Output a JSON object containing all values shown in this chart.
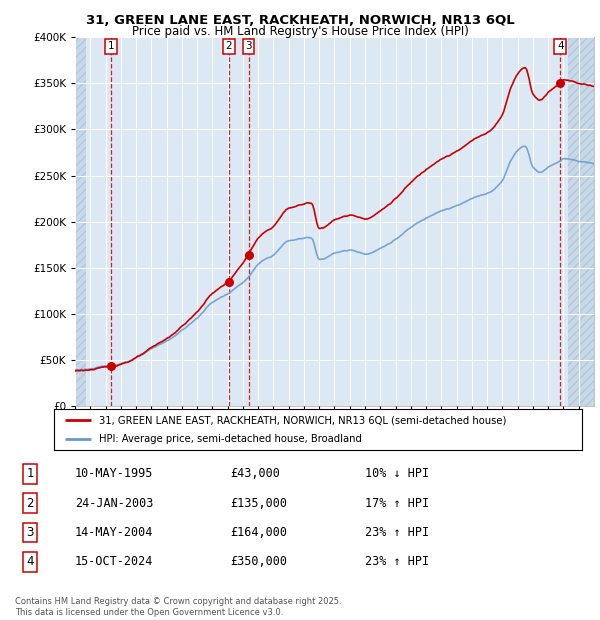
{
  "title": "31, GREEN LANE EAST, RACKHEATH, NORWICH, NR13 6QL",
  "subtitle": "Price paid vs. HM Land Registry's House Price Index (HPI)",
  "sale_prices": [
    43000,
    135000,
    164000,
    350000
  ],
  "sale_labels": [
    "1",
    "2",
    "3",
    "4"
  ],
  "sale_year_floats": [
    1995.37,
    2003.07,
    2004.37,
    2024.79
  ],
  "legend_line1": "31, GREEN LANE EAST, RACKHEATH, NORWICH, NR13 6QL (semi-detached house)",
  "legend_line2": "HPI: Average price, semi-detached house, Broadland",
  "table_data": [
    [
      "1",
      "10-MAY-1995",
      "£43,000",
      "10% ↓ HPI"
    ],
    [
      "2",
      "24-JAN-2003",
      "£135,000",
      "17% ↑ HPI"
    ],
    [
      "3",
      "14-MAY-2004",
      "£164,000",
      "23% ↑ HPI"
    ],
    [
      "4",
      "15-OCT-2024",
      "£350,000",
      "23% ↑ HPI"
    ]
  ],
  "footnote": "Contains HM Land Registry data © Crown copyright and database right 2025.\nThis data is licensed under the Open Government Licence v3.0.",
  "sale_color": "#cc0000",
  "hpi_color": "#6699cc",
  "background_plot": "#dce9f5",
  "background_hatch": "#c8d8e8",
  "ylim": [
    0,
    400000
  ],
  "xlim_start": 1993.0,
  "xlim_end": 2027.0
}
